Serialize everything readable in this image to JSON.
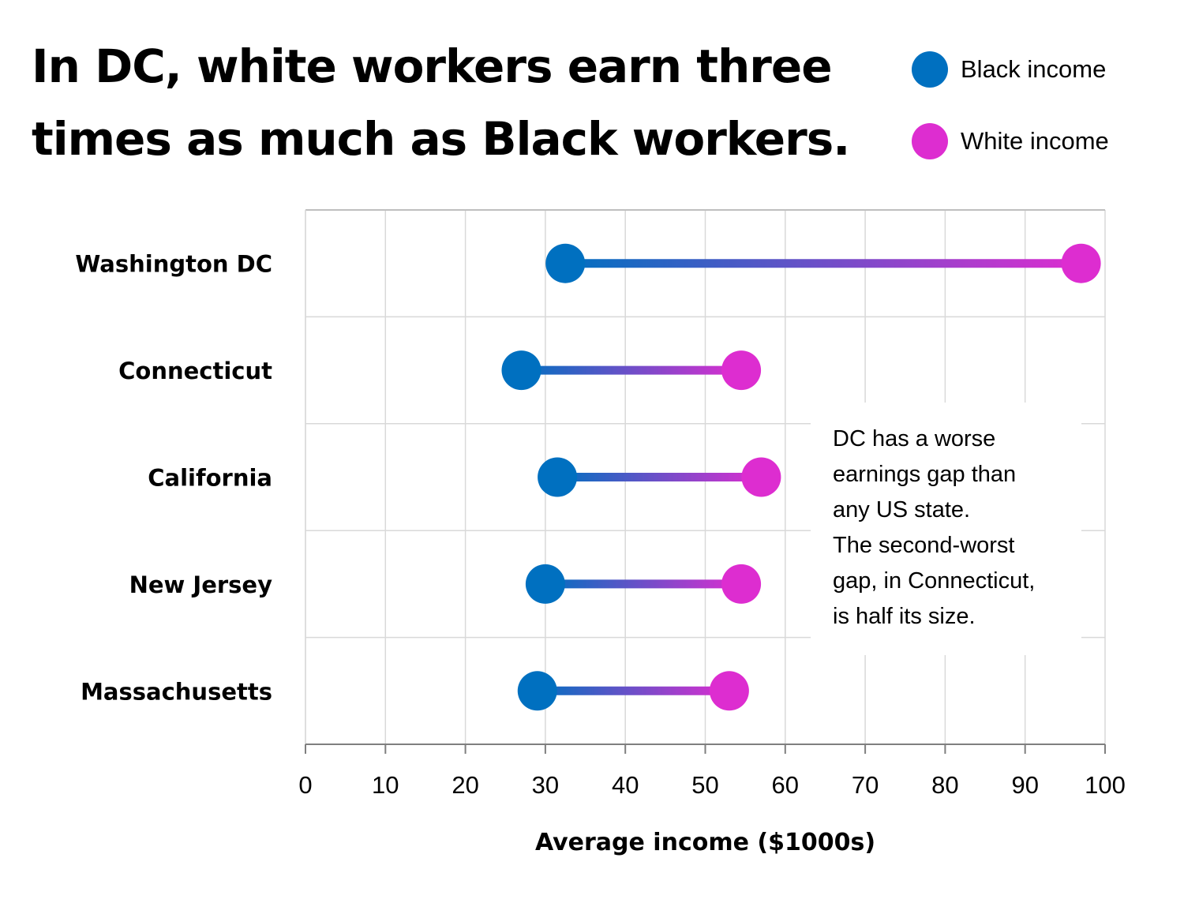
{
  "title": "In DC, white workers earn three times as much as Black workers.",
  "legend": {
    "items": [
      {
        "label": "Black income",
        "color": "#0070c0"
      },
      {
        "label": "White income",
        "color": "#dd2dd0"
      }
    ]
  },
  "annotation": "DC has a worse\nearnings gap than\nany US state.\nThe second-worst\ngap, in Connecticut,\nis half its size.",
  "chart_data": {
    "type": "dumbbell",
    "title": "In DC, white workers earn three times as much as Black workers.",
    "xlabel": "Average income ($1000s)",
    "ylabel": "",
    "xlim": [
      0,
      100
    ],
    "xticks": [
      0,
      10,
      20,
      30,
      40,
      50,
      60,
      70,
      80,
      90,
      100
    ],
    "grid": true,
    "legend_position": "top-right",
    "categories": [
      "Washington DC",
      "Connecticut",
      "California",
      "New Jersey",
      "Massachusetts"
    ],
    "series": [
      {
        "name": "Black income",
        "color": "#0070c0",
        "values": [
          32.5,
          27,
          31.5,
          30,
          29
        ]
      },
      {
        "name": "White income",
        "color": "#dd2dd0",
        "values": [
          97,
          54.5,
          57,
          54.5,
          53
        ]
      }
    ]
  }
}
